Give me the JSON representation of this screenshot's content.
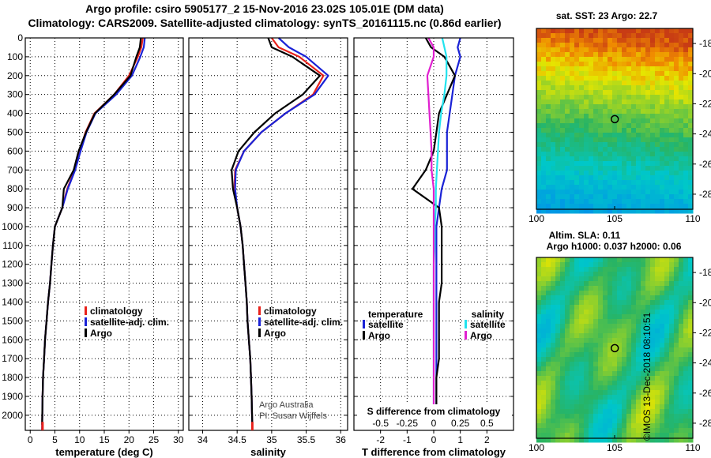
{
  "title": {
    "line1": "Argo profile: csiro 5905177_2 15-Nov-2016 23.02S 105.01E (DM data)",
    "line2": "Climatology: CARS2009. Satellite-adjusted climatology: synTS_20161115.nc (0.86d earlier)"
  },
  "stamp": "©IMOS 13-Dec-2018 08:10:51",
  "colors": {
    "climatology": "#e8221b",
    "satellite": "#1a22d6",
    "argo": "#000000",
    "satellite_s": "#22e3ee",
    "argo_s": "#e020d0"
  },
  "chart_data": [
    {
      "type": "line",
      "id": "temperature",
      "xlabel": "temperature (deg C)",
      "xlim": [
        -1,
        31
      ],
      "xticks": [
        0,
        5,
        10,
        15,
        20,
        25,
        30
      ],
      "xticklabels": [
        "0",
        "5",
        "10",
        "15",
        "20",
        "25",
        "30"
      ],
      "ylim": [
        0,
        2080
      ],
      "yticks": [
        0,
        100,
        200,
        300,
        400,
        500,
        600,
        700,
        800,
        900,
        1000,
        1100,
        1200,
        1300,
        1400,
        1500,
        1600,
        1700,
        1800,
        1900,
        2000
      ],
      "yticklabels": [
        "0",
        "100",
        "200",
        "300",
        "400",
        "500",
        "600",
        "700",
        "800",
        "900",
        "1000",
        "1100",
        "1200",
        "1300",
        "1400",
        "1500",
        "1600",
        "1700",
        "1800",
        "1900",
        "2000"
      ],
      "grid": true,
      "legend": [
        {
          "label": "climatology",
          "color": "#e8221b"
        },
        {
          "label": "satellite-adj. clim.",
          "color": "#1a22d6"
        },
        {
          "label": "Argo",
          "color": "#000000"
        }
      ],
      "series": [
        {
          "name": "climatology",
          "color": "#e8221b",
          "x": [
            22.8,
            22.5,
            21.8,
            20.0,
            17.0,
            13.0,
            11.2,
            10.0,
            9.0,
            7.5,
            6.5,
            5.0,
            4.6,
            4.3,
            4.0,
            3.6,
            3.3,
            3.0,
            2.8,
            2.6,
            2.5,
            2.4
          ],
          "y": [
            0,
            50,
            100,
            200,
            300,
            400,
            500,
            600,
            700,
            800,
            900,
            1000,
            1100,
            1200,
            1300,
            1400,
            1500,
            1600,
            1700,
            1800,
            1900,
            2080
          ]
        },
        {
          "name": "satellite-adj. clim.",
          "color": "#1a22d6",
          "x": [
            23.2,
            23.0,
            22.3,
            20.6,
            17.4,
            13.2,
            11.4,
            10.2,
            9.1,
            7.6,
            6.5,
            5.0,
            4.6,
            4.3,
            4.0,
            3.6,
            3.3,
            3.0,
            2.8,
            2.6,
            2.5,
            2.4
          ],
          "y": [
            0,
            50,
            100,
            200,
            300,
            400,
            500,
            600,
            700,
            800,
            900,
            1000,
            1100,
            1200,
            1300,
            1400,
            1500,
            1600,
            1700,
            1800,
            1900,
            2080
          ]
        },
        {
          "name": "Argo",
          "color": "#000000",
          "x": [
            22.4,
            22.2,
            21.5,
            20.3,
            17.0,
            13.1,
            11.3,
            9.8,
            8.8,
            6.8,
            6.5,
            5.0,
            4.6,
            4.3,
            4.0,
            3.6,
            3.3,
            3.0,
            2.8,
            2.6,
            2.5,
            2.4
          ],
          "y": [
            0,
            50,
            100,
            200,
            300,
            400,
            500,
            600,
            700,
            800,
            900,
            1000,
            1100,
            1200,
            1300,
            1400,
            1500,
            1600,
            1700,
            1800,
            1900,
            2050
          ]
        }
      ]
    },
    {
      "type": "line",
      "id": "salinity",
      "xlabel": "salinity",
      "xlim": [
        33.8,
        36.1
      ],
      "xticks": [
        34,
        34.5,
        35,
        35.5,
        36
      ],
      "xticklabels": [
        "34",
        "34.5",
        "35",
        "35.5",
        "36"
      ],
      "ylim": [
        0,
        2080
      ],
      "grid": true,
      "legend": [
        {
          "label": "climatology",
          "color": "#e8221b"
        },
        {
          "label": "satellite-adj. clim.",
          "color": "#1a22d6"
        },
        {
          "label": "Argo",
          "color": "#000000"
        }
      ],
      "annotations": [
        "Argo Australia",
        "PI: Susan Wijffels"
      ],
      "series": [
        {
          "name": "climatology",
          "color": "#e8221b",
          "x": [
            35.0,
            35.1,
            35.4,
            35.75,
            35.6,
            35.2,
            34.85,
            34.6,
            34.47,
            34.46,
            34.5,
            34.55,
            34.58,
            34.6,
            34.62,
            34.64,
            34.65,
            34.67,
            34.69,
            34.7,
            34.71,
            34.72
          ],
          "y": [
            0,
            50,
            100,
            200,
            300,
            400,
            500,
            600,
            700,
            800,
            900,
            1000,
            1100,
            1200,
            1300,
            1400,
            1500,
            1600,
            1700,
            1800,
            1900,
            2080
          ]
        },
        {
          "name": "satellite-adj. clim.",
          "color": "#1a22d6",
          "x": [
            35.1,
            35.25,
            35.5,
            35.82,
            35.62,
            35.2,
            34.85,
            34.6,
            34.48,
            34.47,
            34.5,
            34.55,
            34.58,
            34.6,
            34.62,
            34.64,
            34.65,
            34.67,
            34.69,
            34.7,
            34.71,
            34.72
          ],
          "y": [
            0,
            50,
            100,
            200,
            300,
            400,
            500,
            600,
            700,
            800,
            900,
            1000,
            1100,
            1200,
            1300,
            1400,
            1500,
            1600,
            1700,
            1800,
            1900,
            2080
          ]
        },
        {
          "name": "Argo",
          "color": "#000000",
          "x": [
            34.95,
            35.0,
            35.3,
            35.7,
            35.45,
            35.05,
            34.75,
            34.52,
            34.42,
            34.44,
            34.5,
            34.55,
            34.58,
            34.6,
            34.62,
            34.64,
            34.65,
            34.67,
            34.69,
            34.7,
            34.71,
            34.72
          ],
          "y": [
            0,
            50,
            100,
            200,
            300,
            400,
            500,
            600,
            700,
            800,
            900,
            1000,
            1100,
            1200,
            1300,
            1400,
            1500,
            1600,
            1700,
            1800,
            1900,
            2050
          ]
        }
      ]
    },
    {
      "type": "line",
      "id": "difference",
      "xlabel": "T difference from climatology",
      "xlabel2": "S difference from climatology",
      "xlim": [
        -3,
        3
      ],
      "xticks": [
        -2,
        -1,
        0,
        1,
        2
      ],
      "xticklabels": [
        "-2",
        "-1",
        "0",
        "1",
        "2"
      ],
      "xticks2": [
        -0.5,
        -0.25,
        0,
        0.25,
        0.5
      ],
      "xticklabels2": [
        "-0.5",
        "-0.25",
        "0",
        "0.25",
        "0.5"
      ],
      "x2_scale_per_T": 4,
      "ylim": [
        0,
        2080
      ],
      "grid": true,
      "legend_temperature": {
        "heading": "temperature",
        "items": [
          {
            "label": "satellite",
            "color": "#1a22d6"
          },
          {
            "label": "Argo",
            "color": "#000000"
          }
        ]
      },
      "legend_salinity": {
        "heading": "salinity",
        "items": [
          {
            "label": "satellite",
            "color": "#22e3ee"
          },
          {
            "label": "Argo",
            "color": "#e020d0"
          }
        ]
      },
      "series": [
        {
          "name": "T satellite",
          "color": "#1a22d6",
          "x": [
            1.0,
            0.9,
            1.0,
            0.8,
            0.7,
            0.6,
            0.5,
            0.5,
            0.5,
            0.3,
            0.2,
            0.1,
            0.1,
            0.1,
            0.1,
            0.1,
            0.1,
            0.1,
            0.1,
            0.1,
            0.1
          ],
          "y": [
            0,
            50,
            100,
            200,
            300,
            400,
            500,
            600,
            700,
            800,
            900,
            1000,
            1100,
            1200,
            1300,
            1400,
            1500,
            1600,
            1700,
            1800,
            2000
          ]
        },
        {
          "name": "T Argo",
          "color": "#000000",
          "x": [
            -0.3,
            -0.1,
            0.4,
            0.8,
            0.5,
            0.2,
            0.1,
            0.0,
            -0.3,
            -0.8,
            0.2,
            0.3,
            0.3,
            0.3,
            0.3,
            0.2,
            0.2,
            0.2,
            0.2,
            0.1,
            0.1
          ],
          "y": [
            0,
            50,
            100,
            200,
            300,
            400,
            500,
            600,
            700,
            800,
            900,
            1000,
            1100,
            1200,
            1300,
            1400,
            1500,
            1600,
            1700,
            1800,
            2000
          ]
        },
        {
          "name": "S satellite",
          "color": "#22e3ee",
          "x": [
            0.08,
            0.1,
            0.12,
            0.12,
            0.1,
            0.07,
            0.05,
            0.04,
            0.03,
            0.02,
            0.02,
            0.01,
            0.01,
            0.0,
            0.0,
            0.0,
            0.0,
            0.0,
            0.0,
            0.0,
            0.0
          ],
          "y": [
            0,
            50,
            100,
            200,
            300,
            400,
            500,
            600,
            700,
            800,
            900,
            1000,
            1100,
            1200,
            1300,
            1400,
            1500,
            1600,
            1700,
            1800,
            2000
          ],
          "axis": "salinity"
        },
        {
          "name": "S Argo",
          "color": "#e020d0",
          "x": [
            -0.05,
            0.0,
            0.0,
            -0.06,
            -0.05,
            -0.04,
            -0.03,
            -0.02,
            -0.02,
            0.0,
            0.0,
            0.0,
            0.0,
            0.0,
            0.0,
            0.0,
            0.0,
            0.0,
            0.0,
            0.0,
            0.0
          ],
          "y": [
            0,
            50,
            100,
            200,
            300,
            400,
            500,
            600,
            700,
            800,
            900,
            1000,
            1100,
            1200,
            1300,
            1400,
            1500,
            1600,
            1700,
            1800,
            2000
          ],
          "axis": "salinity"
        }
      ]
    },
    {
      "type": "heatmap",
      "id": "sst_map",
      "title": "sat. SST: 23 Argo: 22.7",
      "xlim": [
        100,
        110
      ],
      "ylim": [
        -29,
        -17
      ],
      "xticks": [
        100,
        105,
        110
      ],
      "xticklabels": [
        "100",
        "105",
        "110"
      ],
      "yticks": [
        -18,
        -20,
        -22,
        -24,
        -26,
        -28
      ],
      "yticklabels": [
        "-18",
        "-20",
        "-22",
        "-24",
        "-26",
        "-28"
      ],
      "marker": {
        "lon": 105.01,
        "lat": -23.02
      }
    },
    {
      "type": "heatmap",
      "id": "sla_map",
      "title1": "Altim. SLA: 0.11",
      "title2": "Argo h1000: 0.037 h2000: 0.06",
      "xlim": [
        100,
        110
      ],
      "ylim": [
        -29,
        -17
      ],
      "xticks": [
        100,
        105,
        110
      ],
      "xticklabels": [
        "100",
        "105",
        "110"
      ],
      "yticks": [
        -18,
        -20,
        -22,
        -24,
        -26,
        -28
      ],
      "yticklabels": [
        "-18",
        "-20",
        "-22",
        "-24",
        "-26",
        "-28"
      ],
      "marker": {
        "lon": 105.01,
        "lat": -23.02
      }
    }
  ]
}
